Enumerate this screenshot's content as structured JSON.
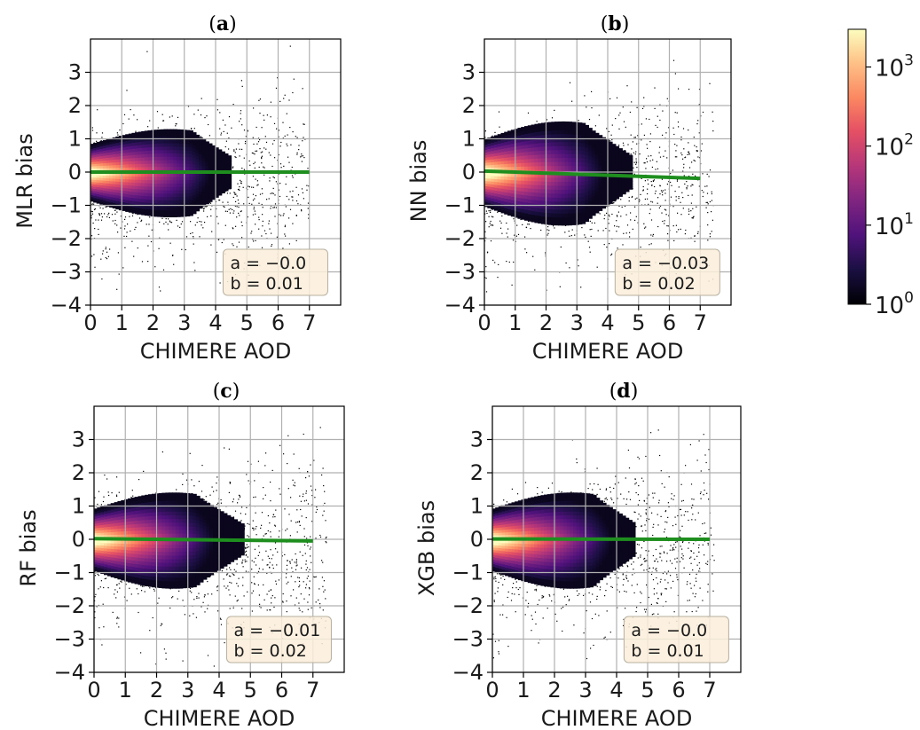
{
  "colorbar": {
    "ticks": [
      {
        "base": "10",
        "exp": "0",
        "value": 1
      },
      {
        "base": "10",
        "exp": "1",
        "value": 10
      },
      {
        "base": "10",
        "exp": "2",
        "value": 100
      },
      {
        "base": "10",
        "exp": "3",
        "value": 1000
      }
    ],
    "scale": "log",
    "range": [
      1,
      3000
    ],
    "colormap": "magma"
  },
  "chart_data": [
    {
      "type": "heatmap",
      "panel_label": "a",
      "xlabel": "CHIMERE AOD",
      "ylabel": "MLR bias",
      "xlim": [
        0,
        8
      ],
      "ylim": [
        -4,
        4
      ],
      "xticks": [
        0,
        1,
        2,
        3,
        4,
        5,
        6,
        7
      ],
      "yticks": [
        -4,
        -3,
        -2,
        -1,
        0,
        1,
        2,
        3
      ],
      "grid": true,
      "fit_line": {
        "x": [
          0,
          7
        ],
        "y": [
          0.0,
          -0.0
        ],
        "color": "#1e8f1e"
      },
      "density": {
        "y_center": 0.0,
        "core_xmax": 2.5,
        "spread_x": 4.5,
        "y_halfwidth": 1.1,
        "tail_min": -3.0
      },
      "stats": {
        "a": "a = −0.0",
        "b": "b = 0.01"
      },
      "legend_position": "bottom-right"
    },
    {
      "type": "heatmap",
      "panel_label": "b",
      "xlabel": "CHIMERE AOD",
      "ylabel": "NN bias",
      "xlim": [
        0,
        8
      ],
      "ylim": [
        -4,
        4
      ],
      "xticks": [
        0,
        1,
        2,
        3,
        4,
        5,
        6,
        7
      ],
      "yticks": [
        -4,
        -3,
        -2,
        -1,
        0,
        1,
        2,
        3
      ],
      "grid": true,
      "fit_line": {
        "x": [
          0,
          7
        ],
        "y": [
          0.03,
          -0.19
        ],
        "color": "#1e8f1e"
      },
      "density": {
        "y_center": 0.0,
        "core_xmax": 2.5,
        "spread_x": 4.8,
        "y_halfwidth": 1.3,
        "tail_min": -3.0
      },
      "stats": {
        "a": "a = −0.03",
        "b": "b = 0.02"
      },
      "legend_position": "bottom-right"
    },
    {
      "type": "heatmap",
      "panel_label": "c",
      "xlabel": "CHIMERE AOD",
      "ylabel": "RF bias",
      "xlim": [
        0,
        8
      ],
      "ylim": [
        -4,
        4
      ],
      "xticks": [
        0,
        1,
        2,
        3,
        4,
        5,
        6,
        7
      ],
      "yticks": [
        -4,
        -3,
        -2,
        -1,
        0,
        1,
        2,
        3
      ],
      "grid": true,
      "fit_line": {
        "x": [
          0,
          7
        ],
        "y": [
          0.02,
          -0.05
        ],
        "color": "#1e8f1e"
      },
      "density": {
        "y_center": 0.0,
        "core_xmax": 2.5,
        "spread_x": 4.8,
        "y_halfwidth": 1.2,
        "tail_min": -3.2
      },
      "stats": {
        "a": "a = −0.01",
        "b": "b = 0.02"
      },
      "legend_position": "bottom-right"
    },
    {
      "type": "heatmap",
      "panel_label": "d",
      "xlabel": "CHIMERE AOD",
      "ylabel": "XGB bias",
      "xlim": [
        0,
        8
      ],
      "ylim": [
        -4,
        4
      ],
      "xticks": [
        0,
        1,
        2,
        3,
        4,
        5,
        6,
        7
      ],
      "yticks": [
        -4,
        -3,
        -2,
        -1,
        0,
        1,
        2,
        3
      ],
      "grid": true,
      "fit_line": {
        "x": [
          0,
          7
        ],
        "y": [
          0.01,
          0.0
        ],
        "color": "#1e8f1e"
      },
      "density": {
        "y_center": 0.0,
        "core_xmax": 2.5,
        "spread_x": 4.6,
        "y_halfwidth": 1.2,
        "tail_min": -3.0
      },
      "stats": {
        "a": "a = −0.0",
        "b": "b = 0.01"
      },
      "legend_position": "bottom-right"
    }
  ]
}
